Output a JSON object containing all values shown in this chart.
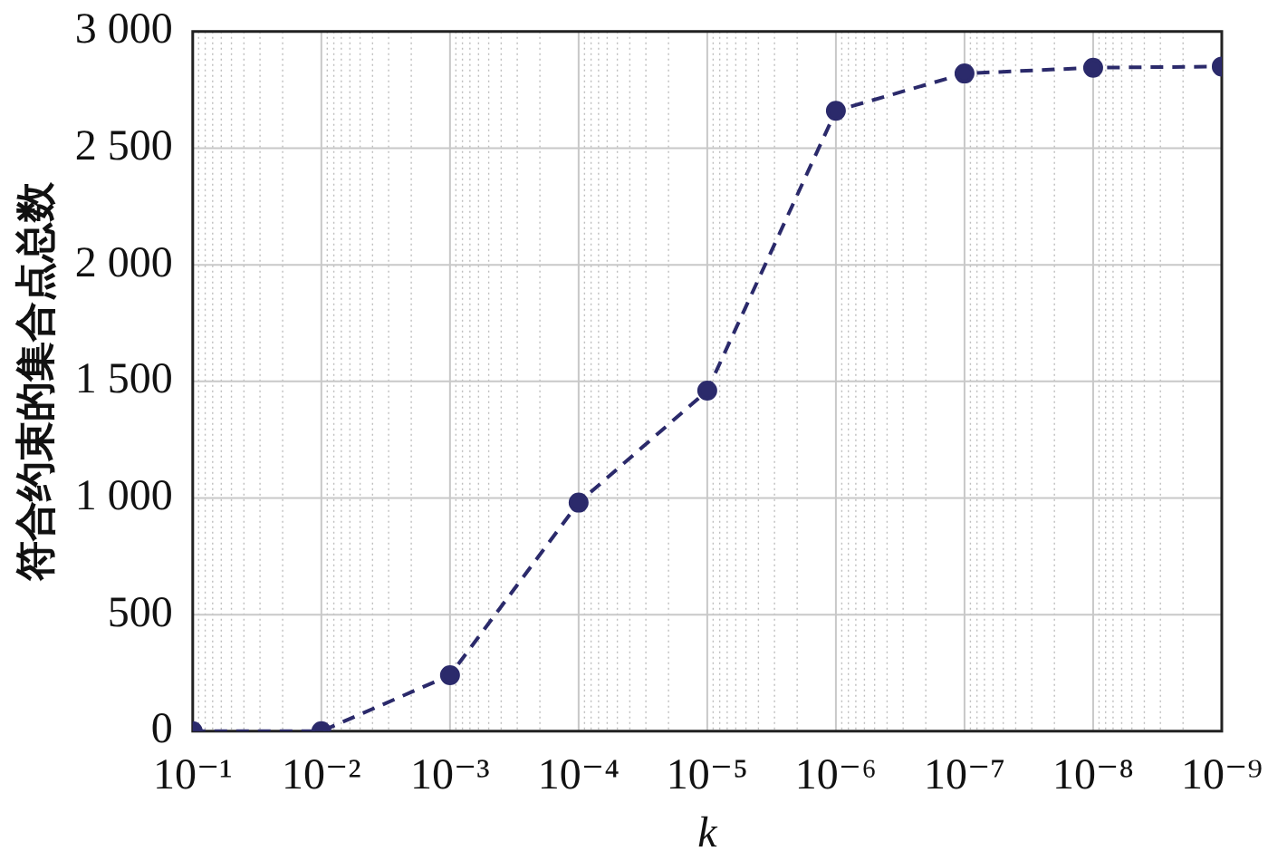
{
  "chart_data": {
    "type": "line",
    "xlabel": "k",
    "ylabel": "符合约束的集合点总数",
    "x": [
      0.1,
      0.01,
      0.001,
      0.0001,
      1e-05,
      1e-06,
      1e-07,
      1e-08,
      1e-09
    ],
    "series": [
      {
        "color": "#2b2a6b",
        "values": [
          0,
          0,
          240,
          980,
          1460,
          2660,
          2820,
          2845,
          2850
        ]
      }
    ],
    "log": "x",
    "xlim": [
      0.1,
      1e-09
    ],
    "xticks": [
      {
        "value": 0.1,
        "label": "10⁻¹"
      },
      {
        "value": 0.01,
        "label": "10⁻²"
      },
      {
        "value": 0.001,
        "label": "10⁻³"
      },
      {
        "value": 0.0001,
        "label": "10⁻⁴"
      },
      {
        "value": 1e-05,
        "label": "10⁻⁵"
      },
      {
        "value": 1e-06,
        "label": "10⁻⁶"
      },
      {
        "value": 1e-07,
        "label": "10⁻⁷"
      },
      {
        "value": 1e-08,
        "label": "10⁻⁸"
      },
      {
        "value": 1e-09,
        "label": "10⁻⁹"
      }
    ],
    "ylim": [
      0,
      3000
    ],
    "yticks": [
      0,
      500,
      {
        "value": 1000,
        "label": "1 000"
      },
      {
        "value": 1500,
        "label": "1 500"
      },
      {
        "value": 2000,
        "label": "2 000"
      },
      {
        "value": 2500,
        "label": "2 500"
      },
      {
        "value": 3000,
        "label": "3 000"
      }
    ],
    "grid": true,
    "marker": "circle",
    "line_style": "dashed",
    "legend": false
  }
}
